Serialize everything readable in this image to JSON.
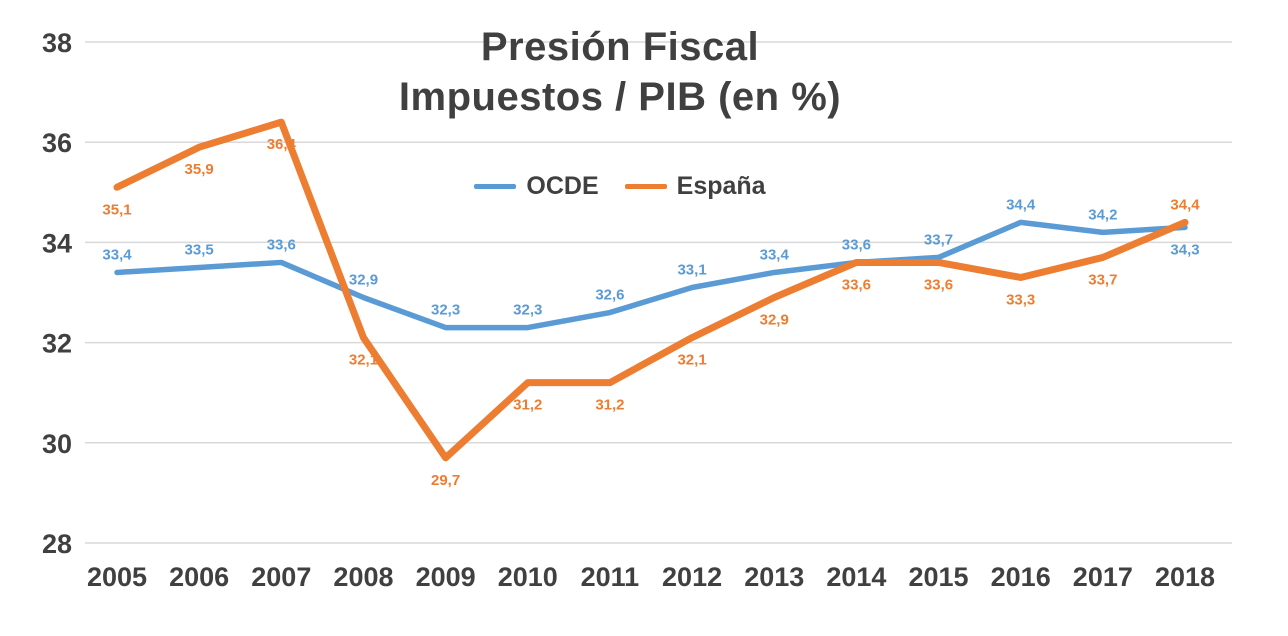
{
  "chart_data": {
    "type": "line",
    "title_line1": "Presión Fiscal",
    "title_line2": "Impuestos / PIB (en %)",
    "categories": [
      "2005",
      "2006",
      "2007",
      "2008",
      "2009",
      "2010",
      "2011",
      "2012",
      "2013",
      "2014",
      "2015",
      "2016",
      "2017",
      "2018"
    ],
    "series": [
      {
        "name": "OCDE",
        "color": "#5B9BD5",
        "line_width": 5.5,
        "values": [
          33.4,
          33.5,
          33.6,
          32.9,
          32.3,
          32.3,
          32.6,
          33.1,
          33.4,
          33.6,
          33.7,
          34.4,
          34.2,
          34.3
        ],
        "labels": [
          "33,4",
          "33,5",
          "33,6",
          "32,9",
          "32,3",
          "32,3",
          "32,6",
          "33,1",
          "33,4",
          "33,6",
          "33,7",
          "34,4",
          "34,2",
          "34,3"
        ],
        "label_side": [
          "above",
          "above",
          "above",
          "above",
          "above",
          "above",
          "above",
          "above",
          "above",
          "above",
          "above",
          "above",
          "above",
          "below"
        ]
      },
      {
        "name": "España",
        "color": "#ED7D31",
        "line_width": 7,
        "values": [
          35.1,
          35.9,
          36.4,
          32.1,
          29.7,
          31.2,
          31.2,
          32.1,
          32.9,
          33.6,
          33.6,
          33.3,
          33.7,
          34.4
        ],
        "labels": [
          "35,1",
          "35,9",
          "36,4",
          "32,1",
          "29,7",
          "31,2",
          "31,2",
          "32,1",
          "32,9",
          "33,6",
          "33,6",
          "33,3",
          "33,7",
          "34,4"
        ],
        "label_side": [
          "below",
          "below",
          "below",
          "below",
          "below",
          "below",
          "below",
          "below",
          "below",
          "below",
          "below",
          "below",
          "below",
          "above"
        ]
      }
    ],
    "ylim": [
      28,
      38
    ],
    "y_ticks": [
      38,
      36,
      34,
      32,
      30,
      28
    ],
    "xlabel": "",
    "ylabel": "",
    "grid": true,
    "grid_color": "#D9D9D9",
    "axis_text_color": "#404040",
    "legend_position": "top-center",
    "background": "#FFFFFF"
  }
}
